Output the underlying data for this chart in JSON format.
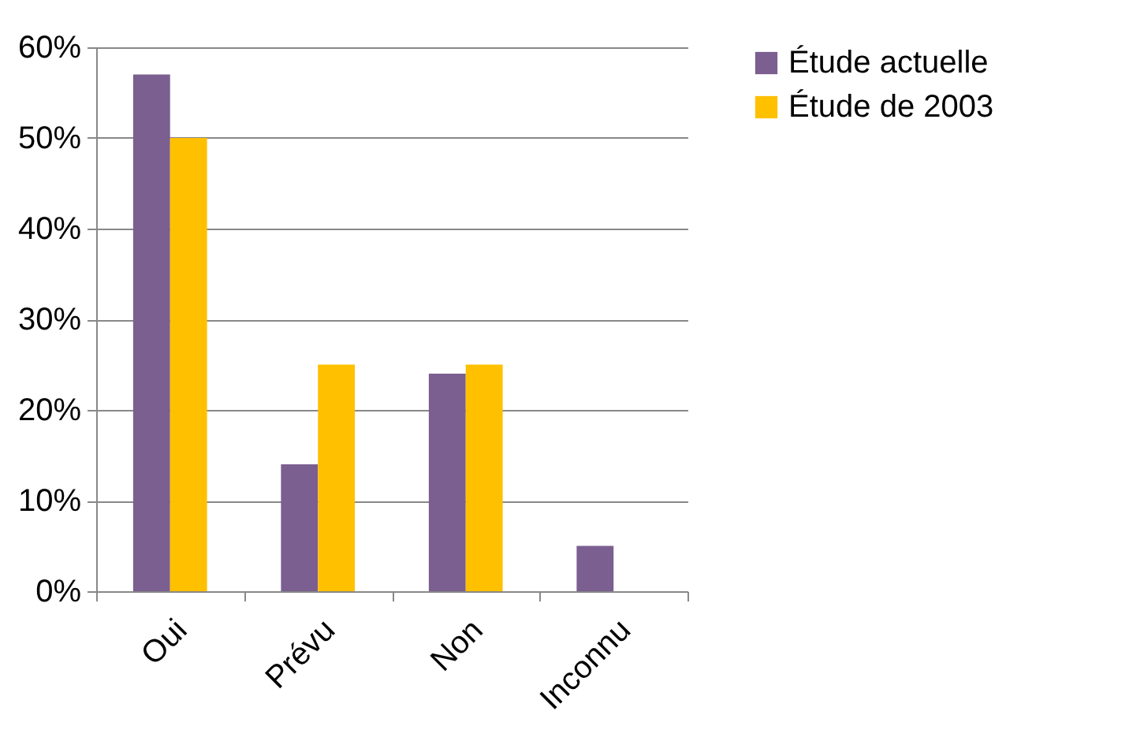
{
  "chart_data": {
    "type": "bar",
    "categories": [
      "Oui",
      "Prévu",
      "Non",
      "Inconnu"
    ],
    "series": [
      {
        "name": "Étude actuelle",
        "color": "#7b5f90",
        "values": [
          57,
          14,
          24,
          5
        ]
      },
      {
        "name": "Étude de 2003",
        "color": "#ffc000",
        "values": [
          50,
          25,
          25,
          null
        ]
      }
    ],
    "ylim": [
      0,
      60
    ],
    "yticks": [
      {
        "value": 0,
        "label": "0%"
      },
      {
        "value": 10,
        "label": "10%"
      },
      {
        "value": 20,
        "label": "20%"
      },
      {
        "value": 30,
        "label": "30%"
      },
      {
        "value": 40,
        "label": "40%"
      },
      {
        "value": 50,
        "label": "50%"
      },
      {
        "value": 60,
        "label": "60%"
      }
    ],
    "grid": "y",
    "legend": "right"
  }
}
